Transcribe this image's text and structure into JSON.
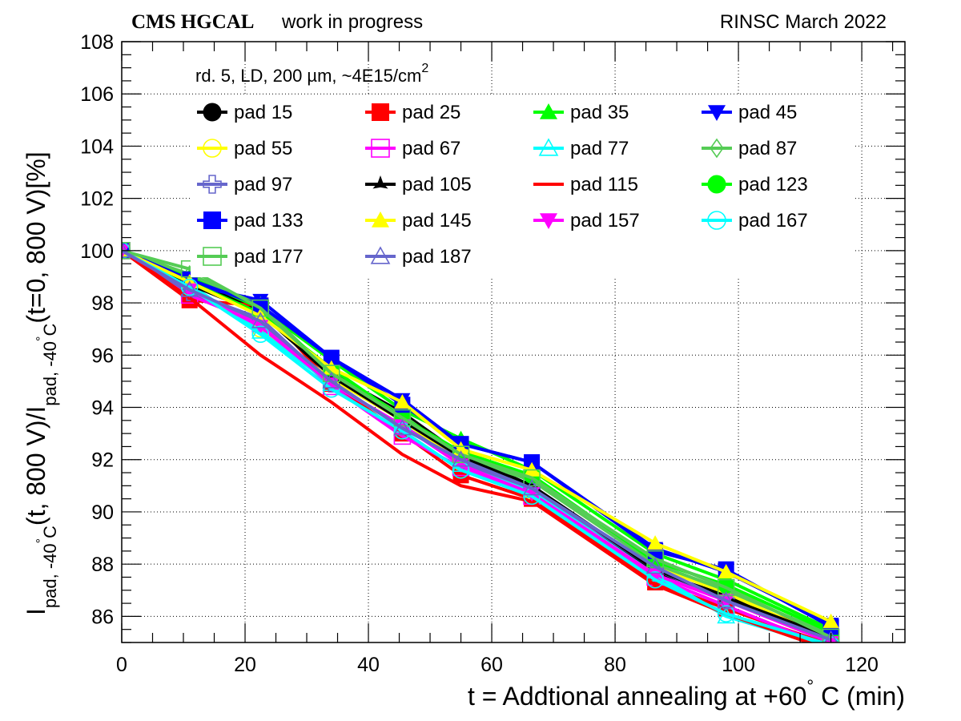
{
  "header": {
    "experiment": "CMS HGCAL",
    "status": "work in progress",
    "facility": "RINSC March 2022"
  },
  "chart_data": {
    "type": "line",
    "subtitle": "rd. 5, LD, 200 µm, ~4E15/cm",
    "subtitle_sup": "2",
    "xlabel": "t = Addtional annealing at +60",
    "xlabel_deg": "°",
    "xlabel_tail": " C (min)",
    "ylabel": {
      "a": "I",
      "a_sub": "pad, -40",
      "a_deg": "°",
      "a_c": "C",
      "b": "(t, 800 V)/I",
      "b_sub": "pad, -40",
      "b_deg": "°",
      "b_c": "C",
      "c": "(t=0, 800 V)[%]"
    },
    "xlim": [
      0,
      127
    ],
    "ylim": [
      85,
      108
    ],
    "x_ticks": [
      "0",
      "20",
      "40",
      "60",
      "80",
      "100",
      "120"
    ],
    "y_ticks": [
      "86",
      "88",
      "90",
      "92",
      "94",
      "96",
      "98",
      "100",
      "102",
      "104",
      "106",
      "108"
    ],
    "grid": true,
    "legend_position": "top",
    "x": [
      0,
      11,
      22.5,
      34,
      45.5,
      55,
      66.5,
      86.5,
      98,
      115
    ],
    "series": [
      {
        "name": "pad 15",
        "color": "#000000",
        "marker": "circle-filled",
        "values": [
          100,
          98.9,
          97.7,
          95.3,
          93.8,
          92.2,
          91.0,
          87.7,
          86.8,
          85.2
        ]
      },
      {
        "name": "pad 25",
        "color": "#ff0000",
        "marker": "square-filled",
        "values": [
          100,
          98.1,
          97.9,
          94.9,
          93.0,
          91.4,
          90.5,
          87.3,
          86.3,
          84.9
        ]
      },
      {
        "name": "pad 35",
        "color": "#00ff00",
        "marker": "triangle-filled",
        "values": [
          100,
          99.0,
          97.8,
          95.8,
          93.9,
          92.8,
          91.6,
          88.4,
          87.4,
          85.5
        ]
      },
      {
        "name": "pad 45",
        "color": "#0000ff",
        "marker": "tridown-filled",
        "values": [
          100,
          98.7,
          98.1,
          95.9,
          94.3,
          92.6,
          91.9,
          88.6,
          87.7,
          85.7
        ]
      },
      {
        "name": "pad 55",
        "color": "#ffff00",
        "marker": "circle-open",
        "values": [
          100,
          98.6,
          97.0,
          95.1,
          93.5,
          91.9,
          90.8,
          87.9,
          86.9,
          85.1
        ]
      },
      {
        "name": "pad 67",
        "color": "#ff00ff",
        "marker": "square-open",
        "values": [
          100,
          98.3,
          97.2,
          94.8,
          92.9,
          91.7,
          90.6,
          87.5,
          86.4,
          84.8
        ]
      },
      {
        "name": "pad 77",
        "color": "#00ffff",
        "marker": "triangle-open",
        "values": [
          100,
          98.7,
          96.9,
          94.9,
          93.3,
          91.8,
          90.8,
          87.6,
          86.0,
          84.8
        ]
      },
      {
        "name": "pad 87",
        "color": "#55cc55",
        "marker": "diamond-open",
        "values": [
          100,
          99.1,
          97.9,
          95.3,
          93.7,
          92.1,
          91.2,
          88.0,
          87.0,
          85.3
        ]
      },
      {
        "name": "pad 97",
        "color": "#6666cc",
        "marker": "cross-open",
        "values": [
          100,
          98.4,
          97.4,
          94.9,
          93.3,
          91.9,
          90.9,
          87.8,
          86.6,
          85.0
        ]
      },
      {
        "name": "pad 105",
        "color": "#000000",
        "marker": "star-filled",
        "values": [
          100,
          98.7,
          97.6,
          95.2,
          93.5,
          92.1,
          91.0,
          87.8,
          86.7,
          85.2
        ]
      },
      {
        "name": "pad 115",
        "color": "#ff0000",
        "marker": "none",
        "values": [
          100,
          98.2,
          96.0,
          94.2,
          92.2,
          91.0,
          90.4,
          87.2,
          86.1,
          84.7
        ]
      },
      {
        "name": "pad 123",
        "color": "#00ff00",
        "marker": "circle-filled",
        "values": [
          100,
          98.8,
          97.6,
          95.5,
          93.6,
          92.3,
          91.4,
          88.1,
          87.2,
          85.4
        ]
      },
      {
        "name": "pad 133",
        "color": "#0000ff",
        "marker": "square-filled",
        "values": [
          100,
          98.9,
          97.9,
          95.9,
          94.1,
          92.6,
          91.9,
          88.5,
          87.8,
          85.6
        ]
      },
      {
        "name": "pad 145",
        "color": "#ffff00",
        "marker": "triangle-filled",
        "values": [
          100,
          98.8,
          97.5,
          95.5,
          94.2,
          92.4,
          91.6,
          88.8,
          87.7,
          85.8
        ]
      },
      {
        "name": "pad 157",
        "color": "#ff00ff",
        "marker": "tridown-filled",
        "values": [
          100,
          98.5,
          97.1,
          94.9,
          93.3,
          91.8,
          90.7,
          87.6,
          86.6,
          85.0
        ]
      },
      {
        "name": "pad 167",
        "color": "#00ffff",
        "marker": "circle-open",
        "values": [
          100,
          98.6,
          96.8,
          94.7,
          93.1,
          91.6,
          90.6,
          87.4,
          86.1,
          84.9
        ]
      },
      {
        "name": "pad 177",
        "color": "#55cc55",
        "marker": "square-open",
        "values": [
          100,
          99.3,
          97.8,
          95.3,
          93.6,
          92.2,
          91.3,
          88.2,
          87.1,
          85.2
        ]
      },
      {
        "name": "pad 187",
        "color": "#6666cc",
        "marker": "triangle-open",
        "values": [
          100,
          98.5,
          97.3,
          95.0,
          93.2,
          92.0,
          90.9,
          87.9,
          86.6,
          85.1
        ]
      }
    ]
  }
}
